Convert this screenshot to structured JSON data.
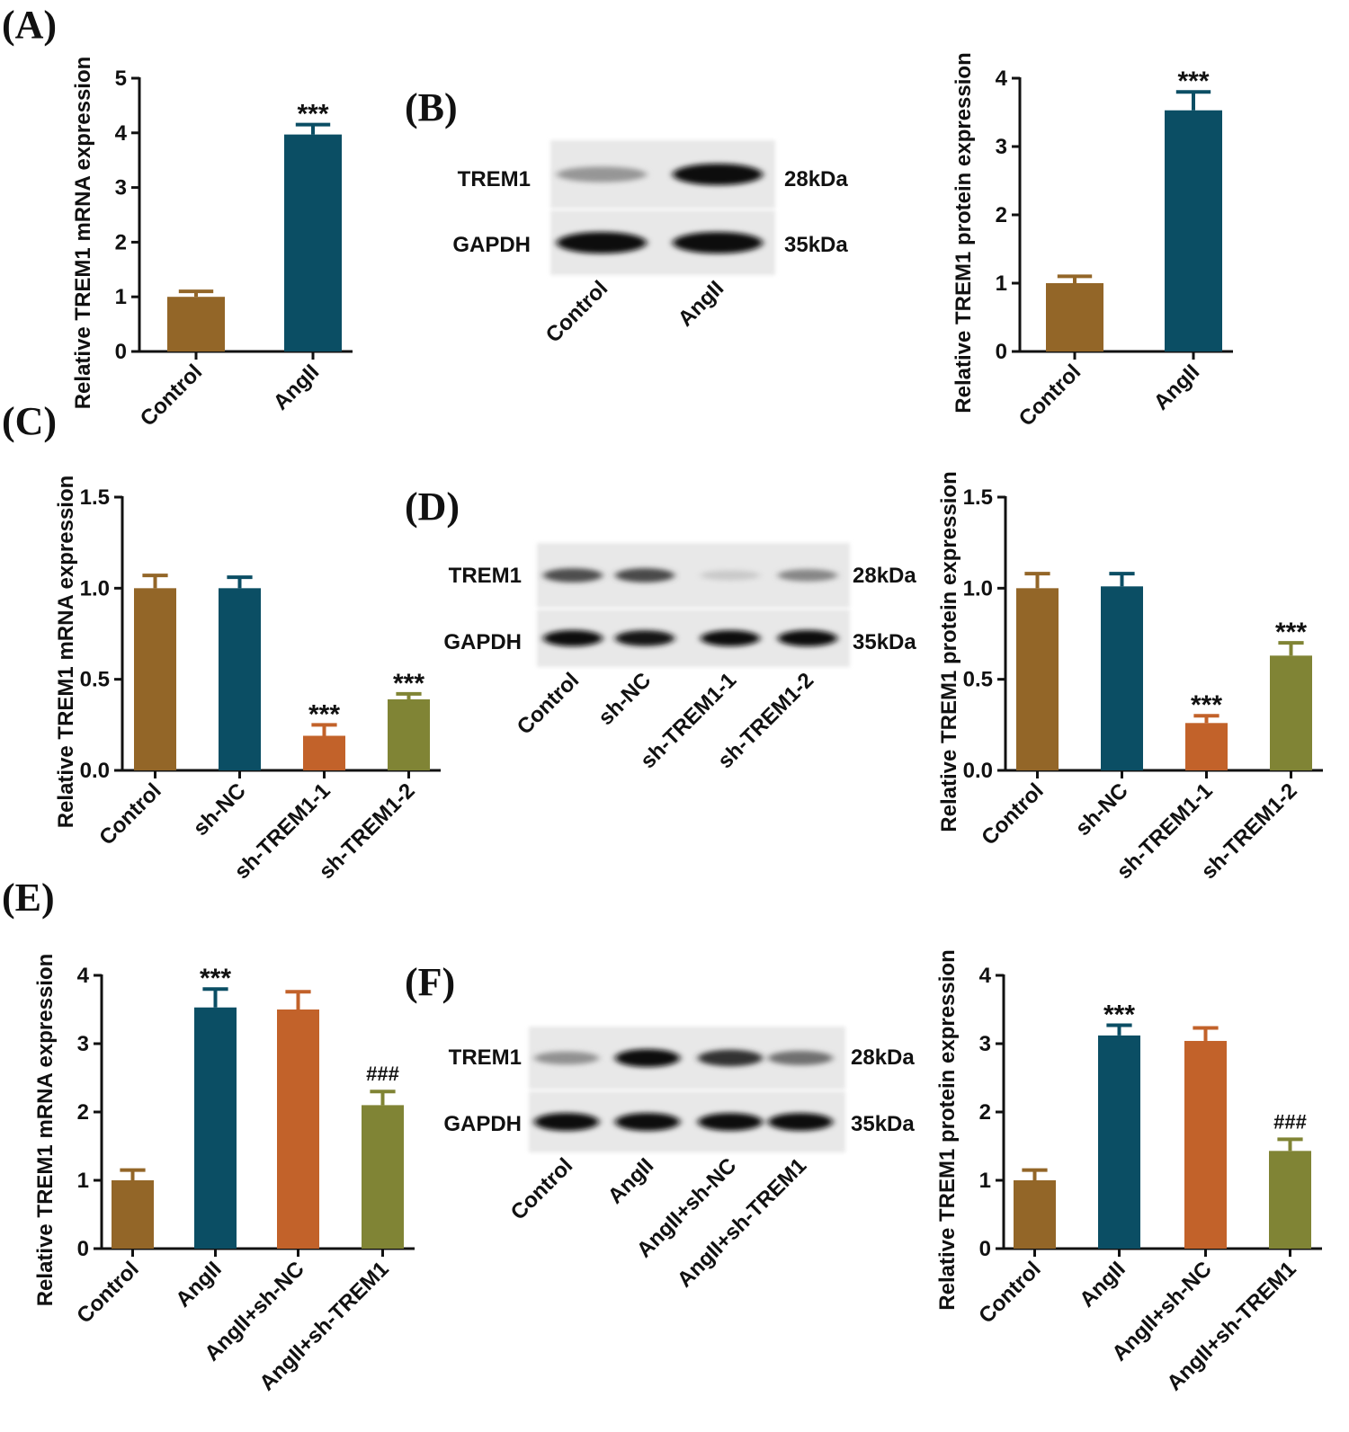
{
  "figure": {
    "panel_labels": [
      "(A)",
      "(B)",
      "(C)",
      "(D)",
      "(E)",
      "(F)"
    ]
  },
  "colors": {
    "control": "#936628",
    "teal": "#0b4e64",
    "orange": "#c2622a",
    "olive": "#808435",
    "axis": "#111111"
  },
  "chart_data": [
    {
      "id": "A",
      "type": "bar",
      "ylabel": "Relative TREM1 mRNA expression",
      "categories": [
        "Control",
        "AngII"
      ],
      "values": [
        1.0,
        3.97
      ],
      "errors": [
        0.1,
        0.18
      ],
      "annotations": [
        "",
        "***"
      ],
      "ylim": [
        0,
        5
      ],
      "yticks": [
        0,
        1,
        2,
        3,
        4,
        5
      ],
      "tick_labels": [
        "0",
        "1",
        "2",
        "3",
        "4",
        "5"
      ]
    },
    {
      "id": "B",
      "type": "bar",
      "ylabel": "Relative TREM1 protein expression",
      "categories": [
        "Control",
        "AngII"
      ],
      "values": [
        1.0,
        3.53
      ],
      "errors": [
        0.1,
        0.27
      ],
      "annotations": [
        "",
        "***"
      ],
      "ylim": [
        0,
        4
      ],
      "yticks": [
        0,
        1,
        2,
        3,
        4
      ],
      "tick_labels": [
        "0",
        "1",
        "2",
        "3",
        "4"
      ]
    },
    {
      "id": "C",
      "type": "bar",
      "ylabel": "Relative TREM1 mRNA expression",
      "categories": [
        "Control",
        "sh-NC",
        "sh-TREM1-1",
        "sh-TREM1-2"
      ],
      "values": [
        1.0,
        1.0,
        0.19,
        0.39
      ],
      "errors": [
        0.07,
        0.06,
        0.06,
        0.03
      ],
      "annotations": [
        "",
        "",
        "***",
        "***"
      ],
      "ylim": [
        0,
        1.5
      ],
      "yticks": [
        0,
        0.5,
        1.0,
        1.5
      ],
      "tick_labels": [
        "0.0",
        "0.5",
        "1.0",
        "1.5"
      ]
    },
    {
      "id": "D",
      "type": "bar",
      "ylabel": "Relative TREM1 protein expression",
      "categories": [
        "Control",
        "sh-NC",
        "sh-TREM1-1",
        "sh-TREM1-2"
      ],
      "values": [
        1.0,
        1.01,
        0.26,
        0.63
      ],
      "errors": [
        0.08,
        0.07,
        0.04,
        0.07
      ],
      "annotations": [
        "",
        "",
        "***",
        "***"
      ],
      "ylim": [
        0,
        1.5
      ],
      "yticks": [
        0,
        0.5,
        1.0,
        1.5
      ],
      "tick_labels": [
        "0.0",
        "0.5",
        "1.0",
        "1.5"
      ]
    },
    {
      "id": "E",
      "type": "bar",
      "ylabel": "Relative TREM1 mRNA expression",
      "categories": [
        "Control",
        "AngII",
        "AngII+sh-NC",
        "AngII+sh-TREM1"
      ],
      "values": [
        1.0,
        3.53,
        3.5,
        2.1
      ],
      "errors": [
        0.15,
        0.27,
        0.26,
        0.2
      ],
      "annotations": [
        "",
        "***",
        "",
        "###"
      ],
      "ylim": [
        0,
        4
      ],
      "yticks": [
        0,
        1,
        2,
        3,
        4
      ],
      "tick_labels": [
        "0",
        "1",
        "2",
        "3",
        "4"
      ]
    },
    {
      "id": "F",
      "type": "bar",
      "ylabel": "Relative TREM1 protein expression",
      "categories": [
        "Control",
        "AngII",
        "AngII+sh-NC",
        "AngII+sh-TREM1"
      ],
      "values": [
        1.0,
        3.12,
        3.04,
        1.43
      ],
      "errors": [
        0.15,
        0.15,
        0.19,
        0.17
      ],
      "annotations": [
        "",
        "***",
        "",
        "###"
      ],
      "ylim": [
        0,
        4
      ],
      "yticks": [
        0,
        1,
        2,
        3,
        4
      ],
      "tick_labels": [
        "0",
        "1",
        "2",
        "3",
        "4"
      ]
    }
  ],
  "western_blots": [
    {
      "id": "B",
      "lanes": [
        "Control",
        "AngII"
      ],
      "rows": [
        {
          "name": "TREM1",
          "kda": "28kDa",
          "intensity": [
            0.38,
            1.0
          ]
        },
        {
          "name": "GAPDH",
          "kda": "35kDa",
          "intensity": [
            1.0,
            1.0
          ]
        }
      ]
    },
    {
      "id": "D",
      "lanes": [
        "Control",
        "sh-NC",
        "sh-TREM1-1",
        "sh-TREM1-2"
      ],
      "rows": [
        {
          "name": "TREM1",
          "kda": "28kDa",
          "intensity": [
            0.7,
            0.72,
            0.15,
            0.45
          ]
        },
        {
          "name": "GAPDH",
          "kda": "35kDa",
          "intensity": [
            1.0,
            0.95,
            0.98,
            1.0
          ]
        }
      ]
    },
    {
      "id": "F",
      "lanes": [
        "Control",
        "AngII",
        "AngII+sh-NC",
        "AngII+sh-TREM1"
      ],
      "rows": [
        {
          "name": "TREM1",
          "kda": "28kDa",
          "intensity": [
            0.4,
            1.0,
            0.82,
            0.55
          ]
        },
        {
          "name": "GAPDH",
          "kda": "35kDa",
          "intensity": [
            1.0,
            1.0,
            0.98,
            0.98
          ]
        }
      ]
    }
  ]
}
